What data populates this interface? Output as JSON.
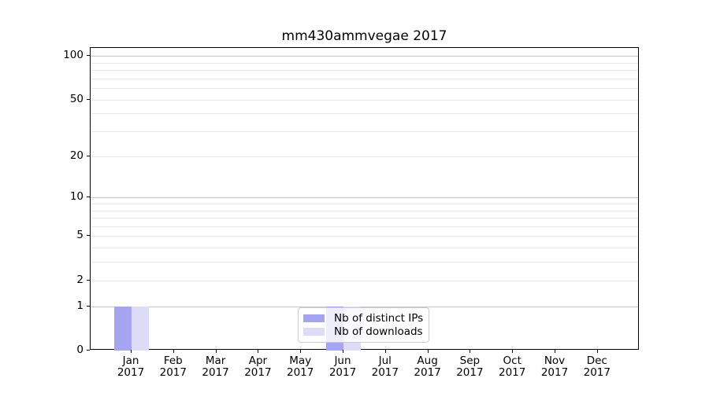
{
  "chart_data": {
    "type": "bar",
    "title": "mm430ammvegae 2017",
    "months": [
      "Jan",
      "Feb",
      "Mar",
      "Apr",
      "May",
      "Jun",
      "Jul",
      "Aug",
      "Sep",
      "Oct",
      "Nov",
      "Dec"
    ],
    "year_label": "2017",
    "categories": [
      "Jan 2017",
      "Feb 2017",
      "Mar 2017",
      "Apr 2017",
      "May 2017",
      "Jun 2017",
      "Jul 2017",
      "Aug 2017",
      "Sep 2017",
      "Oct 2017",
      "Nov 2017",
      "Dec 2017"
    ],
    "series": [
      {
        "name": "Nb of distinct IPs",
        "color": "#a6a6f0",
        "values": [
          1,
          0,
          0,
          0,
          0,
          1,
          0,
          0,
          0,
          0,
          0,
          0
        ]
      },
      {
        "name": "Nb of downloads",
        "color": "#dcdcf8",
        "values": [
          1,
          0,
          0,
          0,
          0,
          1,
          0,
          0,
          0,
          0,
          0,
          0
        ]
      }
    ],
    "xlabel": "",
    "ylabel": "",
    "yscale": "log10(1+y)",
    "ylim": [
      0,
      113.5
    ],
    "yticks": [
      0,
      1,
      2,
      5,
      10,
      20,
      50,
      100
    ],
    "major_gridlines": [
      1,
      10,
      100
    ],
    "minor_gridlines": [
      2,
      3,
      4,
      5,
      6,
      7,
      8,
      9,
      20,
      30,
      40,
      50,
      60,
      70,
      80,
      90
    ],
    "grid": true,
    "legend_position": "lower center",
    "colors": {
      "axis": "#000000",
      "major_grid": "#c4c4c4",
      "minor_grid": "#e9e9e9",
      "background": "#ffffff"
    }
  }
}
